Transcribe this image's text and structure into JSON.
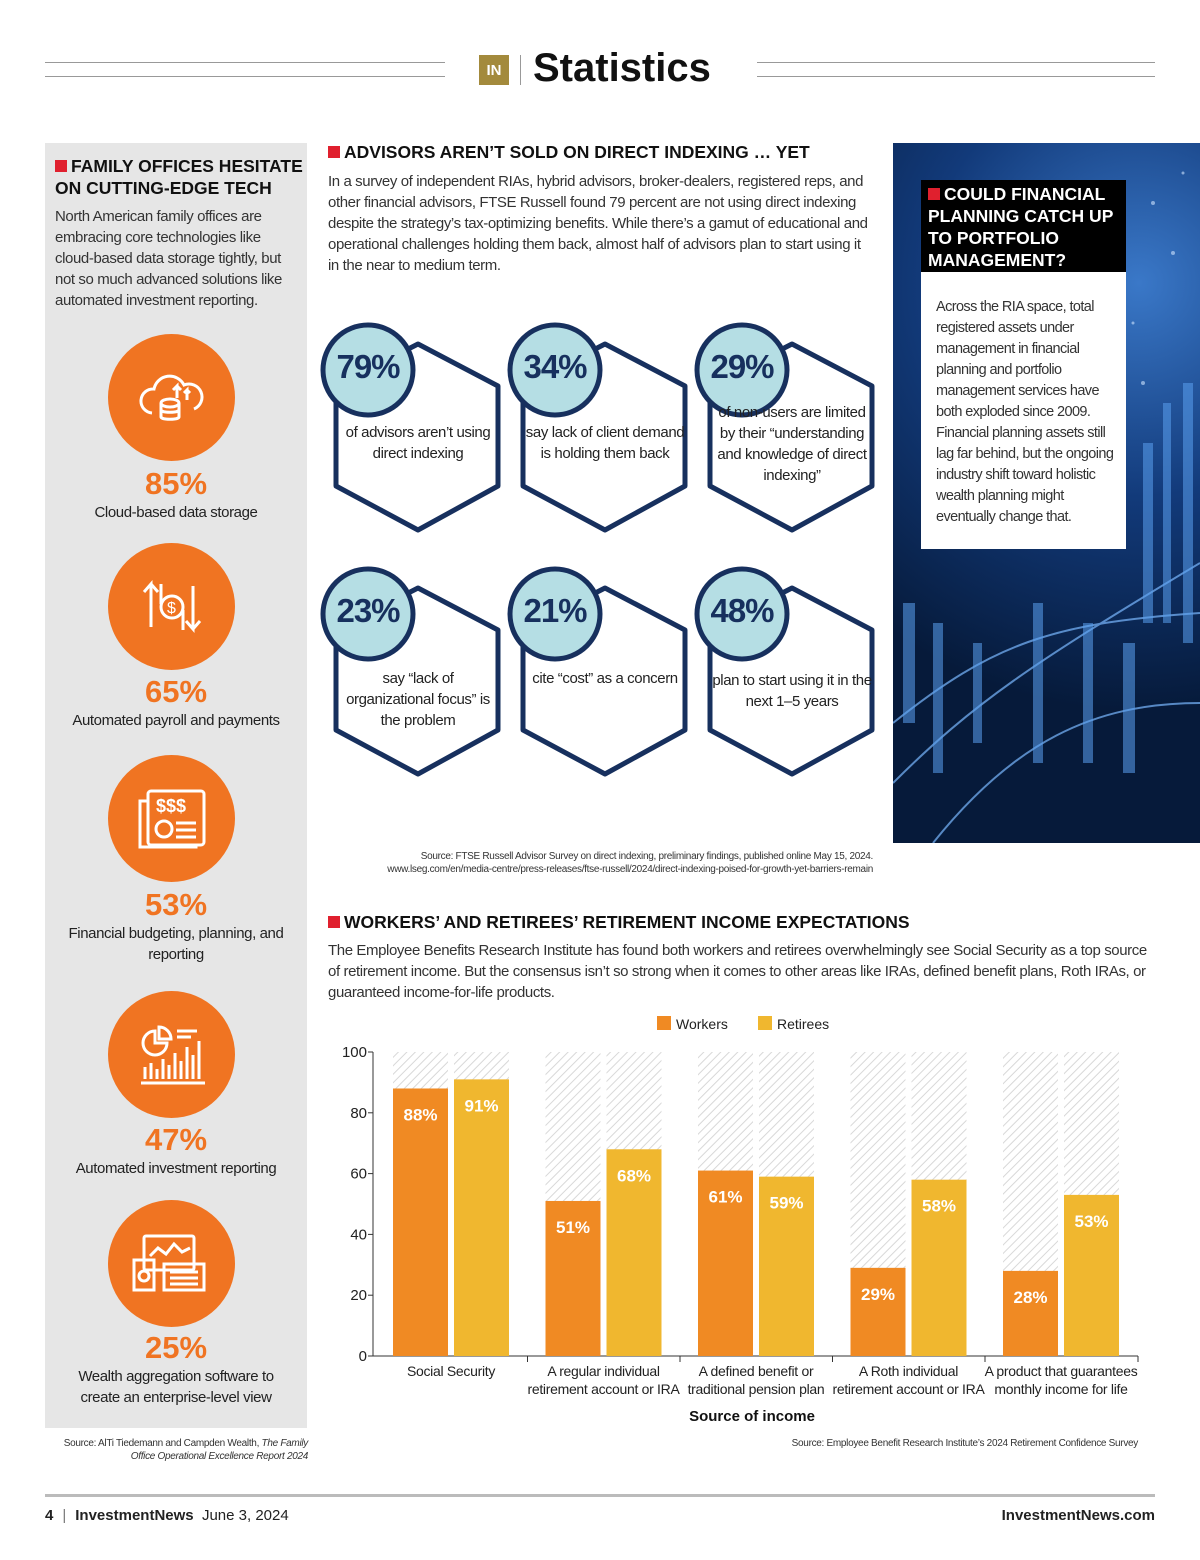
{
  "header": {
    "logo": "IN",
    "title": "Statistics"
  },
  "family_offices": {
    "title": "FAMILY OFFICES HESITATE ON CUTTING-EDGE TECH",
    "body": "North American family offices are embracing core technologies like cloud-based data storage tightly, but not so much advanced solutions like automated investment reporting.",
    "items": [
      {
        "icon": "cloud-database-icon",
        "value": "85%",
        "label": "Cloud-based data storage"
      },
      {
        "icon": "dollar-exchange-icon",
        "value": "65%",
        "label": "Automated payroll and payments"
      },
      {
        "icon": "budget-report-icon",
        "value": "53%",
        "label": "Financial budgeting, planning, and reporting"
      },
      {
        "icon": "analytics-chart-icon",
        "value": "47%",
        "label": "Automated investment reporting"
      },
      {
        "icon": "devices-dashboard-icon",
        "value": "25%",
        "label": "Wealth aggregation software to create an enterprise-level view"
      }
    ],
    "source_prefix": "Source: AlTi Tiedemann and Campden Wealth, ",
    "source_title": "The Family Office Operational Excellence Report 2024"
  },
  "direct_indexing": {
    "title": "ADVISORS AREN’T SOLD ON DIRECT INDEXING … YET",
    "body": "In a survey of independent RIAs, hybrid advisors, broker-dealers, registered reps, and other financial advisors, FTSE Russell found 79 percent are not using direct indexing despite the strategy’s tax-optimizing benefits. While there’s a gamut of educational and operational challenges holding them back, almost half of advisors plan to start using it in the near to medium term.",
    "stats": [
      {
        "value": "79%",
        "text": "of advisors aren’t using direct indexing"
      },
      {
        "value": "34%",
        "text": "say lack of client demand is holding them back"
      },
      {
        "value": "29%",
        "text": "of non-users are limited by their “understanding and knowledge of direct indexing”"
      },
      {
        "value": "23%",
        "text": "say “lack of organizational focus” is the problem"
      },
      {
        "value": "21%",
        "text": "cite “cost” as a concern"
      },
      {
        "value": "48%",
        "text": "plan to start using it in the next 1–5 years"
      }
    ],
    "source": "Source: FTSE Russell Advisor Survey on direct indexing, preliminary findings, published online May 15, 2024.",
    "url": "www.lseg.com/en/media-centre/press-releases/ftse-russell/2024/direct-indexing-poised-for-growth-yet-barriers-remain"
  },
  "financial_planning": {
    "title": "COULD FINANCIAL PLANNING CATCH UP TO PORTFOLIO MANAGEMENT?",
    "body": "Across the RIA space, total registered assets under management in financial planning and portfolio management services have both exploded since 2009. Financial planning assets still lag far behind, but the ongoing industry shift toward holistic wealth planning might eventually change that."
  },
  "retirement": {
    "title": "WORKERS’ AND RETIREES’ RETIREMENT INCOME EXPECTATIONS",
    "body": "The Employee Benefits Research Institute has found both workers and retirees overwhelmingly see Social Security as a top source of retirement income. But the consensus isn’t so strong when it comes to other areas like IRAs, defined benefit plans, Roth IRAs, or guaranteed income-for-life products.",
    "source": "Source: Employee Benefit Research Institute’s 2024 Retirement Confidence Survey"
  },
  "chart_data": {
    "type": "bar",
    "xlabel": "Source of income",
    "ylabel": "",
    "ylim": [
      0,
      100
    ],
    "yticks": [
      "0",
      "20",
      "40",
      "60",
      "80",
      "100"
    ],
    "legend": "top",
    "categories": [
      [
        "Social Security"
      ],
      [
        "A regular individual",
        "retirement account or IRA"
      ],
      [
        "A defined benefit or",
        "traditional pension plan"
      ],
      [
        "A Roth individual",
        "retirement account or IRA"
      ],
      [
        "A product that guarantees",
        "monthly income for life"
      ]
    ],
    "series": [
      {
        "name": "Workers",
        "color": "#f08a23",
        "values": [
          88,
          51,
          61,
          29,
          28
        ],
        "labels": [
          "88%",
          "51%",
          "61%",
          "29%",
          "28%"
        ]
      },
      {
        "name": "Retirees",
        "color": "#f0b72f",
        "values": [
          91,
          68,
          59,
          58,
          53
        ],
        "labels": [
          "91%",
          "68%",
          "59%",
          "58%",
          "53%"
        ]
      }
    ]
  },
  "footer": {
    "page": "4",
    "brand": "InvestmentNews",
    "date": "June 3, 2024",
    "site": "InvestmentNews.com"
  },
  "colors": {
    "orange": "#f07422",
    "navy": "#17305e",
    "hex_circle": "#b5dee4",
    "red": "#e0202e",
    "gold": "#a38a3c"
  }
}
